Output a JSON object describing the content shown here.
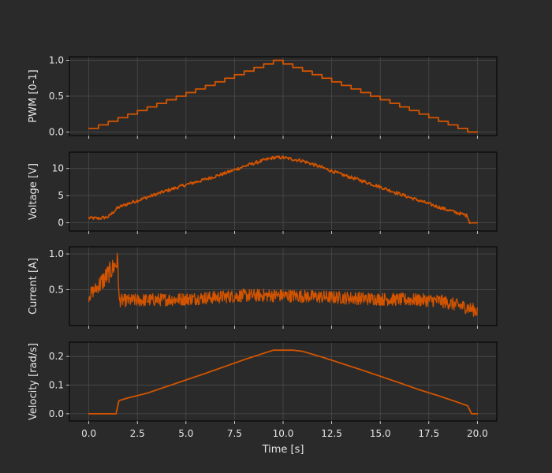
{
  "chart_data": {
    "type": "line",
    "color": "#d35400",
    "background": "#2a2a2a",
    "grid": true,
    "xlabel": "Time [s]",
    "xlim": [
      -1.0,
      21.0
    ],
    "xticks": [
      0.0,
      2.5,
      5.0,
      7.5,
      10.0,
      12.5,
      15.0,
      17.5,
      20.0
    ],
    "xticklabels": [
      "0.0",
      "2.5",
      "5.0",
      "7.5",
      "10.0",
      "12.5",
      "15.0",
      "17.5",
      "20.0"
    ],
    "panels": [
      {
        "ylabel": "PWM [0-1]",
        "ylim": [
          -0.05,
          1.05
        ],
        "yticks": [
          0.0,
          0.5,
          1.0
        ],
        "yticklabels": [
          "0.0",
          "0.5",
          "1.0"
        ],
        "kind": "pwm",
        "series": {
          "step_interval": 0.5,
          "t_end": 19.5,
          "peak_time": 9.5,
          "values": [
            0.05,
            0.1,
            0.15,
            0.2,
            0.25,
            0.3,
            0.35,
            0.4,
            0.45,
            0.5,
            0.55,
            0.6,
            0.65,
            0.7,
            0.75,
            0.8,
            0.85,
            0.9,
            0.95,
            1.0,
            0.95,
            0.9,
            0.85,
            0.8,
            0.75,
            0.7,
            0.65,
            0.6,
            0.55,
            0.5,
            0.45,
            0.4,
            0.35,
            0.3,
            0.25,
            0.2,
            0.15,
            0.1,
            0.05,
            0.0
          ]
        }
      },
      {
        "ylabel": "Voltage [V]",
        "ylim": [
          -1.5,
          13.0
        ],
        "yticks": [
          0,
          5,
          10
        ],
        "yticklabels": [
          "0",
          "5",
          "10"
        ],
        "kind": "voltage",
        "series": {
          "x": [
            0.0,
            0.5,
            1.0,
            1.5,
            2.0,
            3.0,
            4.0,
            5.0,
            6.0,
            7.0,
            8.0,
            9.0,
            9.5,
            10.0,
            11.0,
            12.0,
            13.0,
            14.0,
            15.0,
            16.0,
            17.0,
            18.0,
            19.0,
            19.5,
            19.6,
            20.0
          ],
          "y": [
            0.9,
            0.8,
            1.1,
            2.8,
            3.5,
            4.7,
            5.9,
            7.0,
            8.0,
            9.1,
            10.4,
            11.5,
            12.0,
            12.0,
            11.4,
            10.2,
            8.9,
            7.8,
            6.6,
            5.3,
            4.1,
            2.9,
            1.8,
            1.3,
            0.0,
            0.0
          ],
          "noise": 0.3
        }
      },
      {
        "ylabel": "Current [A]",
        "ylim": [
          0.0,
          1.1
        ],
        "yticks": [
          0.5,
          1.0
        ],
        "yticklabels": [
          "0.5",
          "1.0"
        ],
        "kind": "current",
        "series": {
          "x": [
            0.0,
            0.5,
            1.0,
            1.5,
            1.55,
            2.0,
            5.0,
            8.0,
            10.0,
            12.0,
            15.0,
            18.0,
            19.5,
            20.0
          ],
          "y": [
            0.42,
            0.55,
            0.72,
            0.9,
            0.35,
            0.35,
            0.37,
            0.42,
            0.42,
            0.4,
            0.37,
            0.35,
            0.25,
            0.2
          ],
          "noise": 0.09
        }
      },
      {
        "ylabel": "Velocity [rad/s]",
        "ylim": [
          -0.025,
          0.25
        ],
        "yticks": [
          0.0,
          0.1,
          0.2
        ],
        "yticklabels": [
          "0.0",
          "0.1",
          "0.2"
        ],
        "kind": "velocity",
        "series": {
          "x": [
            0.0,
            1.4,
            1.55,
            2.0,
            3.0,
            4.0,
            5.0,
            6.0,
            7.0,
            8.0,
            9.0,
            9.5,
            10.5,
            11.0,
            12.0,
            13.0,
            14.0,
            15.0,
            16.0,
            17.0,
            18.0,
            19.0,
            19.5,
            19.7,
            20.0
          ],
          "y": [
            0.0,
            0.0,
            0.046,
            0.055,
            0.072,
            0.095,
            0.118,
            0.141,
            0.165,
            0.189,
            0.211,
            0.222,
            0.222,
            0.218,
            0.198,
            0.176,
            0.154,
            0.131,
            0.108,
            0.084,
            0.063,
            0.04,
            0.028,
            0.0,
            0.0
          ]
        }
      }
    ]
  }
}
